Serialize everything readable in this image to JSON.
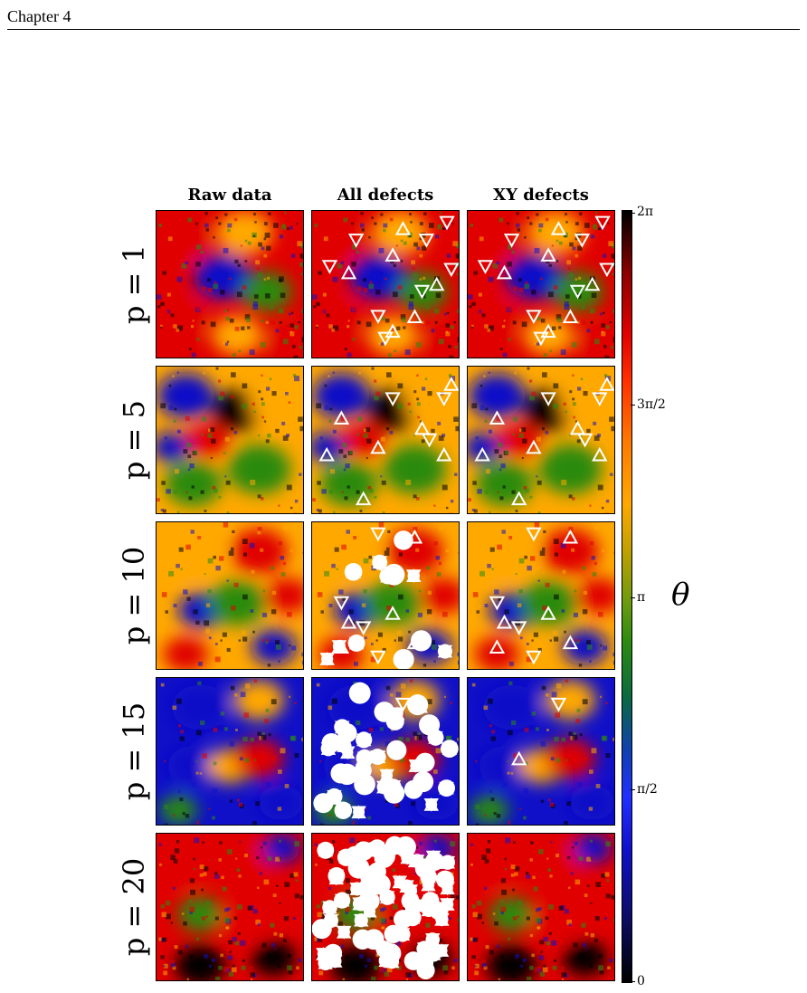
{
  "header": {
    "chapter": "Chapter 4"
  },
  "columns": [
    "Raw data",
    "All defects",
    "XY defects"
  ],
  "rows": [
    "p = 1",
    "p = 5",
    "p = 10",
    "p = 15",
    "p = 20"
  ],
  "colorbar": {
    "label": "θ",
    "ticks": [
      "0",
      "π/2",
      "π",
      "3π/2",
      "2π"
    ],
    "colormap": [
      "#000000",
      "#1010c8",
      "#2b8a10",
      "#ffa800",
      "#e00000",
      "#000000"
    ]
  },
  "defect_color": "#ffffff"
}
